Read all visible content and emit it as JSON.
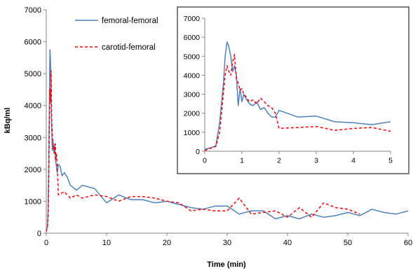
{
  "chart_data": [
    {
      "type": "line",
      "title": "",
      "xlabel": "Time (min)",
      "ylabel": "kBq/ml",
      "xlim": [
        0,
        60
      ],
      "ylim": [
        0,
        7000
      ],
      "x_ticks": [
        "0",
        "10",
        "20",
        "30",
        "40",
        "50",
        "60"
      ],
      "y_ticks": [
        "0",
        "1000",
        "2000",
        "3000",
        "4000",
        "5000",
        "6000",
        "7000"
      ],
      "grid": false,
      "legend": "top-left, inside plot",
      "series": [
        {
          "name": "femoral-femoral",
          "color": "#4f81bd",
          "style": "solid",
          "x": [
            0,
            0.2,
            0.3,
            0.4,
            0.5,
            0.6,
            0.7,
            0.8,
            0.9,
            1.0,
            1.1,
            1.2,
            1.3,
            1.4,
            1.5,
            1.6,
            1.8,
            2.0,
            2.3,
            2.6,
            3.0,
            3.5,
            4.0,
            5.0,
            6.0,
            8.0,
            10.0,
            12.0,
            14.0,
            16.0,
            18.0,
            20.0,
            22.0,
            24.0,
            26.0,
            28.0,
            30.0,
            32.0,
            34.0,
            36.0,
            38.0,
            40.0,
            42.0,
            44.0,
            46.0,
            48.0,
            50.0,
            52.0,
            54.0,
            56.0,
            58.0,
            60.0
          ],
          "y": [
            100,
            200,
            700,
            1800,
            3800,
            5750,
            5400,
            4200,
            3300,
            2600,
            2900,
            2600,
            2500,
            2800,
            2300,
            2200,
            1900,
            2150,
            2100,
            1800,
            1900,
            1750,
            1500,
            1350,
            1500,
            1400,
            950,
            1200,
            1050,
            1050,
            950,
            1000,
            900,
            800,
            750,
            850,
            850,
            600,
            700,
            700,
            450,
            550,
            450,
            600,
            500,
            550,
            650,
            550,
            750,
            650,
            600,
            700
          ]
        },
        {
          "name": "carotid-femoral",
          "color": "#ff0000",
          "style": "dashed",
          "x": [
            0,
            0.2,
            0.3,
            0.4,
            0.5,
            0.6,
            0.7,
            0.8,
            0.9,
            1.0,
            1.1,
            1.2,
            1.3,
            1.4,
            1.5,
            1.6,
            1.7,
            1.8,
            1.9,
            2.0,
            2.5,
            3.0,
            4.0,
            5.0,
            6.0,
            8.0,
            10.0,
            12.0,
            14.0,
            16.0,
            18.0,
            20.0,
            22.0,
            24.0,
            26.0,
            28.0,
            30.0,
            32.0,
            34.0,
            36.0,
            38.0,
            40.0,
            42.0,
            44.0,
            46.0,
            48.0,
            50.0,
            52.0
          ],
          "y": [
            50,
            200,
            500,
            1500,
            3200,
            4500,
            4100,
            5100,
            3600,
            3100,
            2800,
            2650,
            2750,
            2500,
            2800,
            2300,
            2500,
            2200,
            1800,
            1200,
            1250,
            1300,
            1100,
            1200,
            1100,
            1200,
            1150,
            1000,
            1150,
            1150,
            1100,
            1000,
            950,
            700,
            750,
            700,
            700,
            1100,
            600,
            650,
            700,
            500,
            800,
            500,
            950,
            800,
            750,
            600
          ]
        }
      ]
    },
    {
      "type": "line",
      "title": "",
      "xlabel": "",
      "ylabel": "",
      "xlim": [
        0,
        5
      ],
      "ylim": [
        0,
        7000
      ],
      "x_ticks": [
        "0",
        "1",
        "2",
        "3",
        "4",
        "5"
      ],
      "y_ticks": [
        "0",
        "1000",
        "2000",
        "3000",
        "4000",
        "5000",
        "6000",
        "7000"
      ],
      "grid": false,
      "legend": "none",
      "series": [
        {
          "name": "femoral-femoral",
          "color": "#4f81bd",
          "style": "solid",
          "x": [
            0,
            0.1,
            0.2,
            0.3,
            0.4,
            0.45,
            0.5,
            0.55,
            0.6,
            0.65,
            0.7,
            0.75,
            0.8,
            0.85,
            0.9,
            0.95,
            1.0,
            1.05,
            1.1,
            1.2,
            1.3,
            1.4,
            1.5,
            1.6,
            1.7,
            1.8,
            1.9,
            2.0,
            2.5,
            3.0,
            3.5,
            4.0,
            4.5,
            5.0
          ],
          "y": [
            100,
            150,
            200,
            300,
            1500,
            2500,
            3500,
            5000,
            5750,
            5500,
            5000,
            4200,
            4500,
            4000,
            2400,
            3300,
            2600,
            3000,
            2800,
            2500,
            2400,
            2600,
            2200,
            2300,
            2000,
            1800,
            1800,
            2150,
            1800,
            1850,
            1550,
            1500,
            1400,
            1550
          ]
        },
        {
          "name": "carotid-femoral",
          "color": "#ff0000",
          "style": "dashed",
          "x": [
            0,
            0.1,
            0.2,
            0.3,
            0.4,
            0.45,
            0.5,
            0.55,
            0.6,
            0.65,
            0.7,
            0.75,
            0.8,
            0.85,
            0.9,
            0.95,
            1.0,
            1.05,
            1.1,
            1.2,
            1.3,
            1.4,
            1.5,
            1.6,
            1.7,
            1.8,
            1.9,
            2.0,
            2.5,
            3.0,
            3.5,
            4.0,
            4.5,
            5.0
          ],
          "y": [
            50,
            100,
            200,
            250,
            1000,
            2000,
            3000,
            4000,
            4500,
            4200,
            4000,
            4700,
            5100,
            3800,
            3600,
            3200,
            3300,
            3000,
            2900,
            2600,
            2700,
            2500,
            2800,
            2600,
            2400,
            2300,
            2000,
            1200,
            1250,
            1300,
            1100,
            1200,
            1250,
            1050
          ]
        }
      ]
    }
  ]
}
